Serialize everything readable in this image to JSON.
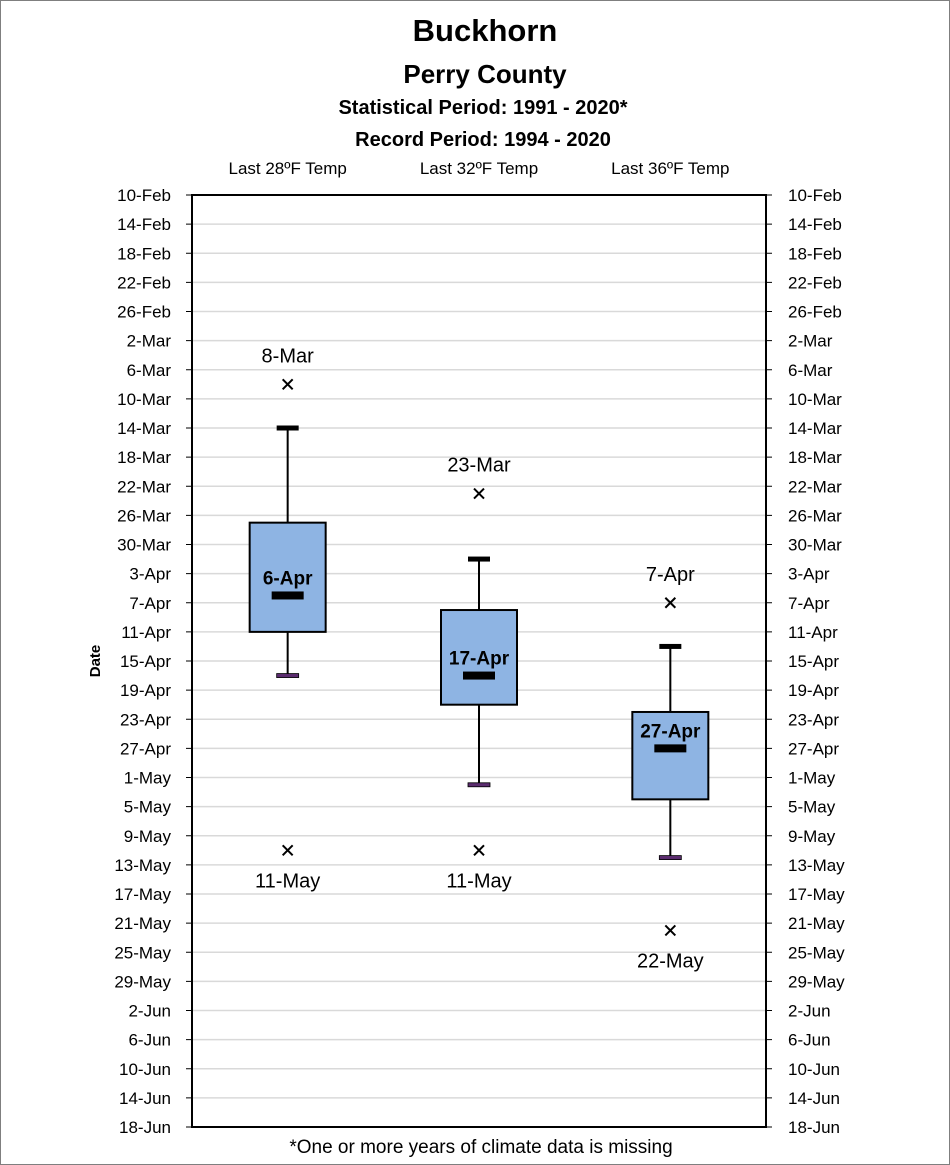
{
  "chart_data": {
    "type": "boxplot",
    "title": "Buckhorn",
    "subtitle": "Perry County",
    "statistical_period": "Statistical Period: 1991 - 2020*",
    "record_period": "Record Period: 1994 - 2020",
    "ylabel": "Date",
    "footnote": "*One or more years of climate data is missing",
    "y_axis": {
      "reversed": true,
      "range": [
        "10-Feb",
        "18-Jun"
      ],
      "tick_labels": [
        "10-Feb",
        "14-Feb",
        "18-Feb",
        "22-Feb",
        "26-Feb",
        "2-Mar",
        "6-Mar",
        "10-Mar",
        "14-Mar",
        "18-Mar",
        "22-Mar",
        "26-Mar",
        "30-Mar",
        "3-Apr",
        "7-Apr",
        "11-Apr",
        "15-Apr",
        "19-Apr",
        "23-Apr",
        "27-Apr",
        "1-May",
        "5-May",
        "9-May",
        "13-May",
        "17-May",
        "21-May",
        "25-May",
        "29-May",
        "2-Jun",
        "6-Jun",
        "10-Jun",
        "14-Jun",
        "18-Jun"
      ],
      "tick_step_days": 4
    },
    "grid": true,
    "categories": [
      "Last 28ºF Temp",
      "Last 32ºF Temp",
      "Last 36ºF Temp"
    ],
    "series": [
      {
        "category": "Last 28ºF Temp",
        "earliest_record": "8-Mar",
        "whisker_low": "14-Mar",
        "q1": "27-Mar",
        "median": "6-Apr",
        "q3": "11-Apr",
        "whisker_high": "17-Apr",
        "latest_record": "11-May"
      },
      {
        "category": "Last 32ºF Temp",
        "earliest_record": "23-Mar",
        "whisker_low": "1-Apr",
        "q1": "8-Apr",
        "median": "17-Apr",
        "q3": "21-Apr",
        "whisker_high": "2-May",
        "latest_record": "11-May"
      },
      {
        "category": "Last 36ºF Temp",
        "earliest_record": "7-Apr",
        "whisker_low": "13-Apr",
        "q1": "22-Apr",
        "median": "27-Apr",
        "q3": "4-May",
        "whisker_high": "12-May",
        "latest_record": "22-May"
      }
    ],
    "colors": {
      "box_fill": "#8eb4e3",
      "box_stroke": "#000000",
      "whisker_low_cap": "#000000",
      "whisker_high_cap": "#5b2c6f",
      "gridline": "#d9d9d9"
    }
  }
}
